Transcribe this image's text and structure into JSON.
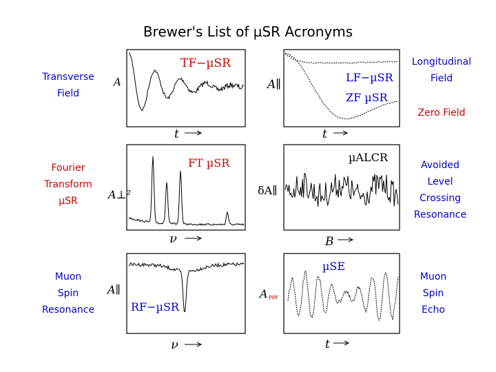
{
  "title": "Brewer's List of µSR Acronyms",
  "left_labels": {
    "tf": {
      "lines": [
        "Transverse",
        "Field"
      ],
      "color": "#0000cc"
    },
    "ft": {
      "lines": [
        "Fourier",
        "Transform",
        "µSR"
      ],
      "color": "#cc0000"
    },
    "rf": {
      "lines": [
        "Muon",
        "Spin",
        "Resonance"
      ],
      "color": "#0000cc"
    }
  },
  "right_labels": {
    "lf": {
      "lines": [
        "Longitudinal",
        "Field"
      ],
      "color": "#0000cc"
    },
    "zf": {
      "lines": [
        "Zero Field"
      ],
      "color": "#cc0000"
    },
    "alcr": {
      "lines": [
        "Avoided",
        "Level",
        "Crossing",
        "Resonance"
      ],
      "color": "#0000cc"
    },
    "se": {
      "lines": [
        "Muon",
        "Spin",
        "Echo"
      ],
      "color": "#0000cc"
    }
  },
  "panels": {
    "tf": {
      "label": "TF−µSR",
      "label_color": "#cc0000",
      "ylabel": "A",
      "xlabel": "t"
    },
    "lfzf": {
      "label_lf": "LF−µSR",
      "label_zf": "ZF  µSR",
      "label_color": "#0000cc",
      "ylabel": "A∥",
      "xlabel": "t"
    },
    "ft": {
      "label": "FT  µSR",
      "label_color": "#cc0000",
      "ylabel": "A⊥²",
      "xlabel": "ν"
    },
    "alcr": {
      "label": "µALCR",
      "label_color": "#000000",
      "ylabel": "δA∥",
      "xlabel": "B"
    },
    "rf": {
      "label": "RF−µSR",
      "label_color": "#0000cc",
      "ylabel": "A∥",
      "xlabel": "ν"
    },
    "se": {
      "label": "µSE",
      "label_color": "#0000cc",
      "ylabel": "A",
      "ylabel_sub": "PPF",
      "ylabel_sub_color": "#cc0000",
      "xlabel": "t"
    }
  },
  "colors": {
    "blue": "#0000cc",
    "red": "#cc0000"
  }
}
